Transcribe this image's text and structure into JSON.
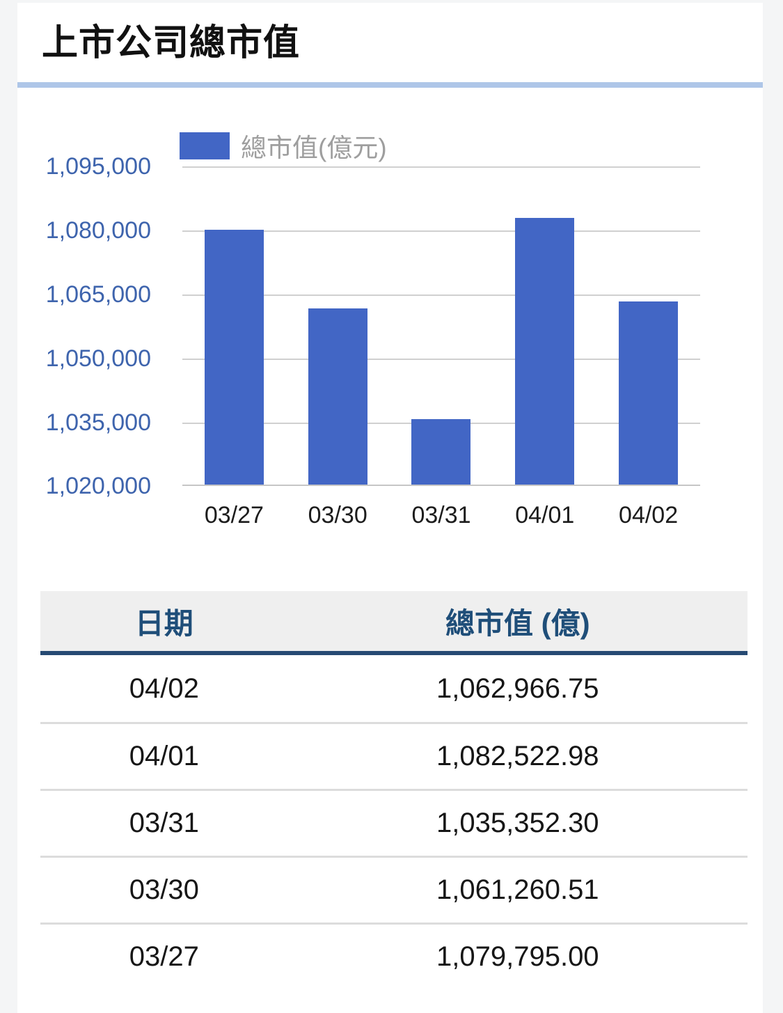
{
  "page": {
    "title": "上市公司總市值"
  },
  "chart_data": {
    "type": "bar",
    "title": "上市公司總市值",
    "legend": "總市值(億元)",
    "legend_position": "top",
    "categories": [
      "03/27",
      "03/30",
      "03/31",
      "04/01",
      "04/02"
    ],
    "values": [
      1079795.0,
      1061260.51,
      1035352.3,
      1082522.98,
      1062966.75
    ],
    "xlabel": "",
    "ylabel": "",
    "ylim": [
      1020000,
      1095000
    ],
    "ytick_interval": 15000,
    "ytick_labels": [
      "1,095,000",
      "1,080,000",
      "1,065,000",
      "1,050,000",
      "1,035,000",
      "1,020,000"
    ],
    "grid": true,
    "bar_color": "#4266c5",
    "axis_label_color": "#3e64ad"
  },
  "table": {
    "columns": [
      "日期",
      "總市值 (億)"
    ],
    "rows": [
      {
        "date": "04/02",
        "value": "1,062,966.75"
      },
      {
        "date": "04/01",
        "value": "1,082,522.98"
      },
      {
        "date": "03/31",
        "value": "1,035,352.30"
      },
      {
        "date": "03/30",
        "value": "1,061,260.51"
      },
      {
        "date": "03/27",
        "value": "1,079,795.00"
      }
    ]
  },
  "colors": {
    "bar": "#4266c5",
    "title_divider": "#aec6e8",
    "table_header_text": "#1f4e79",
    "table_header_rule": "#264a73",
    "table_header_bg": "#efefef",
    "page_background": "#f4f5f6"
  }
}
